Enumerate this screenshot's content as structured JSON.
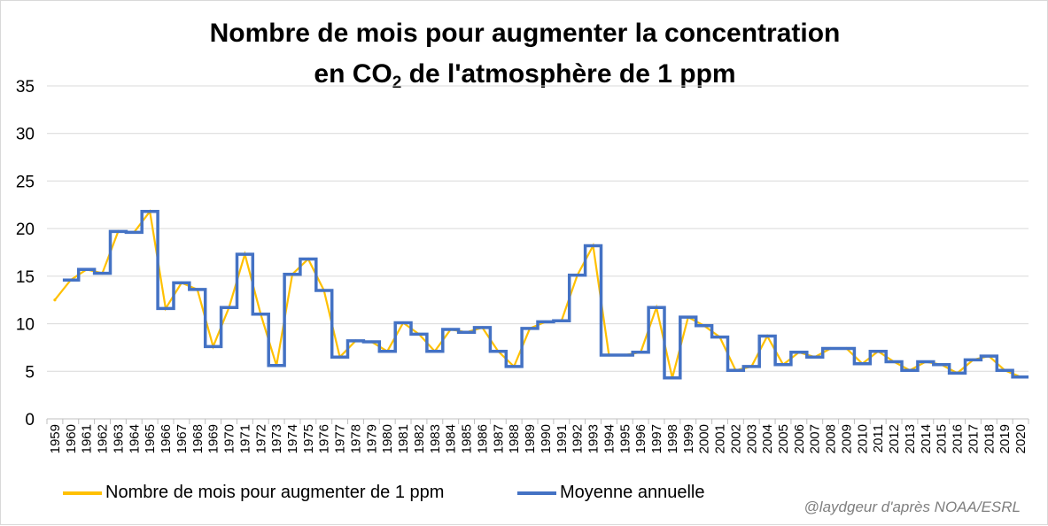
{
  "chart_data": {
    "type": "line",
    "title_line1": "Nombre de mois pour augmenter la concentration",
    "title_line2_pre": "en CO",
    "title_line2_sub": "2",
    "title_line2_post": " de l'atmosphère de 1 ppm",
    "ylim": [
      0,
      35
    ],
    "yticks": [
      0,
      5,
      10,
      15,
      20,
      25,
      30,
      35
    ],
    "grid": "horizontal",
    "legend_position": "bottom",
    "categories": [
      "1959",
      "1960",
      "1961",
      "1962",
      "1963",
      "1964",
      "1965",
      "1966",
      "1967",
      "1968",
      "1969",
      "1970",
      "1971",
      "1972",
      "1973",
      "1974",
      "1975",
      "1976",
      "1977",
      "1978",
      "1979",
      "1980",
      "1981",
      "1982",
      "1983",
      "1984",
      "1985",
      "1986",
      "1987",
      "1988",
      "1989",
      "1990",
      "1991",
      "1992",
      "1993",
      "1994",
      "1995",
      "1996",
      "1997",
      "1998",
      "1999",
      "2000",
      "2001",
      "2002",
      "2003",
      "2004",
      "2005",
      "2006",
      "2007",
      "2008",
      "2009",
      "2010",
      "2011",
      "2012",
      "2013",
      "2014",
      "2015",
      "2016",
      "2017",
      "2018",
      "2019",
      "2020"
    ],
    "series": [
      {
        "name": "Nombre de mois pour augmenter de 1 ppm",
        "color": "#FFC000",
        "values": [
          12.5,
          14.6,
          15.7,
          15.3,
          19.7,
          19.6,
          21.8,
          11.6,
          14.3,
          13.6,
          7.6,
          11.7,
          17.3,
          11.0,
          5.6,
          15.2,
          16.8,
          13.5,
          6.5,
          8.2,
          8.1,
          7.1,
          10.1,
          8.9,
          7.1,
          9.4,
          9.1,
          9.6,
          7.1,
          5.5,
          9.5,
          10.2,
          10.3,
          15.1,
          18.2,
          6.7,
          6.7,
          7.0,
          11.7,
          4.3,
          10.7,
          9.8,
          8.6,
          5.1,
          5.5,
          8.7,
          5.7,
          7.0,
          6.5,
          7.4,
          7.4,
          5.8,
          7.1,
          6.0,
          5.1,
          6.0,
          5.7,
          4.8,
          6.2,
          6.6,
          5.1,
          4.4
        ]
      },
      {
        "name": "Moyenne annuelle",
        "color": "#4472C4",
        "values": [
          null,
          14.6,
          15.7,
          15.3,
          19.7,
          19.6,
          21.8,
          11.6,
          14.3,
          13.6,
          7.6,
          11.7,
          17.3,
          11.0,
          5.6,
          15.2,
          16.8,
          13.5,
          6.5,
          8.2,
          8.1,
          7.1,
          10.1,
          8.9,
          7.1,
          9.4,
          9.1,
          9.6,
          7.1,
          5.5,
          9.5,
          10.2,
          10.3,
          15.1,
          18.2,
          6.7,
          6.7,
          7.0,
          11.7,
          4.3,
          10.7,
          9.8,
          8.6,
          5.1,
          5.5,
          8.7,
          5.7,
          7.0,
          6.5,
          7.4,
          7.4,
          5.8,
          7.1,
          6.0,
          5.1,
          6.0,
          5.7,
          4.8,
          6.2,
          6.6,
          5.1,
          4.4
        ]
      }
    ]
  },
  "credit": "@laydgeur d'après NOAA/ESRL"
}
